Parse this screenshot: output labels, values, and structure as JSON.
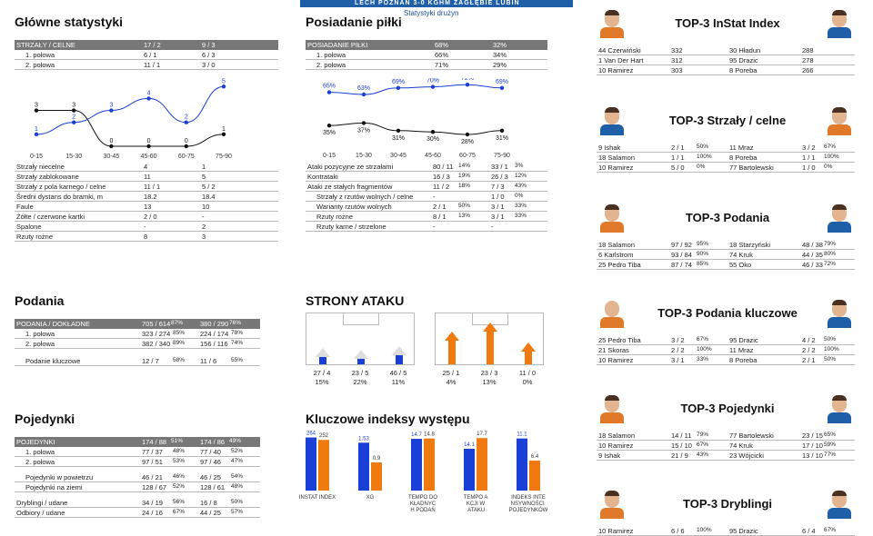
{
  "header": {
    "title": "LECH POZNAŃ 3-0 KGHM ZAGŁĘBIE LUBIN",
    "subtitle": "Statystyki drużyn"
  },
  "main_stats": {
    "title": "Główne statystyki",
    "head": [
      "STRZAŁY / CELNE",
      "17 / 2",
      "9 / 3"
    ],
    "half": [
      [
        "1. połowa",
        "6 / 1",
        "6 / 3"
      ],
      [
        "2. połowa",
        "11 / 1",
        "3 / 0"
      ]
    ],
    "chart_x": [
      "0-15",
      "15-30",
      "30-45",
      "45-60",
      "60-75",
      "75-90"
    ],
    "rows": [
      [
        "Strzały niecelne",
        "4",
        "1"
      ],
      [
        "Strzały zablokowane",
        "11",
        "5"
      ],
      [
        "Strzały z pola karnego / celne",
        "11 / 1",
        "5 / 2"
      ],
      [
        "Średni dystans do bramki, m",
        "18.2",
        "18.4"
      ],
      [
        "Faule",
        "13",
        "10"
      ],
      [
        "Żółte / czerwone kartki",
        "2 / 0",
        "-"
      ],
      [
        "Spalone",
        "-",
        "2"
      ],
      [
        "Rzuty rożne",
        "8",
        "3"
      ]
    ]
  },
  "possession": {
    "title": "Posiadanie piłki",
    "head": [
      "POSIADANIE PIŁKI",
      "68%",
      "32%"
    ],
    "half": [
      [
        "1. połowa",
        "66%",
        "34%"
      ],
      [
        "2. połowa",
        "71%",
        "29%"
      ]
    ],
    "rows": [
      [
        "Ataki pozycyjne ze strzałami",
        "80 / 11",
        "14%",
        "33 / 1",
        "3%"
      ],
      [
        "Kontrataki",
        "16 / 3",
        "19%",
        "26 / 3",
        "12%"
      ],
      [
        "Ataki ze stałych fragmentów",
        "11 / 2",
        "18%",
        "7 / 3",
        "43%"
      ],
      [
        "Strzały z rzutów wolnych / celne",
        "-",
        "",
        "1 / 0",
        "0%"
      ],
      [
        "Warianty rzutów wolnych",
        "2 / 1",
        "50%",
        "3 / 1",
        "33%"
      ],
      [
        "Rzuty rożne",
        "8 / 1",
        "13%",
        "3 / 1",
        "33%"
      ],
      [
        "Rzuty karne / strzelone",
        "-",
        "",
        "-",
        ""
      ]
    ]
  },
  "passes": {
    "title": "Podania",
    "head": [
      "PODANIA / DOKŁADNE",
      "705 / 614",
      "87%",
      "380 / 290",
      "76%"
    ],
    "rows": [
      [
        "1. połowa",
        "323 / 274",
        "85%",
        "224 / 174",
        "78%"
      ],
      [
        "2. połowa",
        "382 / 340",
        "89%",
        "156 / 116",
        "74%"
      ],
      [
        "Podanie kluczowe",
        "12 / 7",
        "58%",
        "11 / 6",
        "55%"
      ]
    ]
  },
  "duels": {
    "title": "Pojedynki",
    "head": [
      "POJEDYNKI",
      "174 / 88",
      "51%",
      "174 / 86",
      "49%"
    ],
    "rows": [
      [
        "1. połowa",
        "77 / 37",
        "48%",
        "77 / 40",
        "52%"
      ],
      [
        "2. połowa",
        "97 / 51",
        "53%",
        "97 / 46",
        "47%"
      ],
      [
        "Pojedynki w powietrzu",
        "46 / 21",
        "46%",
        "46 / 25",
        "54%"
      ],
      [
        "Pojedynki na ziemi",
        "128 / 67",
        "52%",
        "128 / 61",
        "48%"
      ],
      [
        "Dryblingi / udane",
        "34 / 19",
        "56%",
        "16 / 8",
        "50%"
      ],
      [
        "Odbiory / udane",
        "24 / 16",
        "67%",
        "44 / 25",
        "57%"
      ]
    ]
  },
  "attack": {
    "title": "STRONY ATAKU",
    "home": [
      [
        "27 / 4",
        "15%"
      ],
      [
        "23 / 5",
        "22%"
      ],
      [
        "46 / 5",
        "11%"
      ]
    ],
    "away": [
      [
        "25 / 1",
        "4%"
      ],
      [
        "23 / 3",
        "13%"
      ],
      [
        "11 / 0",
        "0%"
      ]
    ]
  },
  "indexes": {
    "title": "Kluczowe indeksy występu",
    "labels": [
      "INSTAT INDEX",
      "XG",
      "TEMPO DOKŁADNYCH PODAŃ",
      "TEMPO AKCJI W ATAKU",
      "INDEKS INTENSYWNOŚCI POJEDYNKÓW"
    ],
    "home": [
      "264",
      "1.53",
      "14.7",
      "14.1",
      "11.1"
    ],
    "away": [
      "252",
      "0.9",
      "14.8",
      "17.7",
      "6.4"
    ]
  },
  "chart_data": [
    {
      "type": "line",
      "categories": [
        "0-15",
        "15-30",
        "30-45",
        "45-60",
        "60-75",
        "75-90"
      ],
      "series": [
        {
          "values": [
            3,
            3,
            0,
            0,
            0,
            1
          ]
        },
        {
          "values": [
            1,
            2,
            3,
            4,
            2,
            5
          ]
        }
      ]
    },
    {
      "type": "line",
      "categories": [
        "0-15",
        "15-30",
        "30-45",
        "45-60",
        "60-75",
        "75-90"
      ],
      "series": [
        {
          "values": [
            65,
            63,
            69,
            70,
            72,
            69
          ]
        },
        {
          "values": [
            35,
            37,
            31,
            30,
            28,
            31
          ]
        }
      ]
    },
    {
      "type": "bar",
      "categories": [
        "INSTAT INDEX",
        "XG",
        "TEMPO DOKŁADNYCH PODAŃ",
        "TEMPO AKCJI W ATAKU",
        "INDEKS INTENSYWNOŚCI POJEDYNKÓW"
      ],
      "series": [
        {
          "values": [
            264,
            1.53,
            14.7,
            14.1,
            11.1
          ]
        },
        {
          "values": [
            252,
            0.9,
            14.8,
            17.7,
            6.4
          ]
        }
      ]
    }
  ],
  "top": [
    {
      "title": "TOP-3 InStat Index",
      "left": [
        [
          "44 Czerwiński",
          "332"
        ],
        [
          "1  Van Der Hart",
          "312"
        ],
        [
          "10 Ramirez",
          "303"
        ]
      ],
      "right": [
        [
          "30 Hładun",
          "288"
        ],
        [
          "95 Drazic",
          "278"
        ],
        [
          "8  Poreba",
          "266"
        ]
      ]
    },
    {
      "title": "TOP-3 Strzały / celne",
      "left": [
        [
          "9  Ishak",
          "2 / 1",
          "50%"
        ],
        [
          "18 Salamon",
          "1 / 1",
          "100%"
        ],
        [
          "10 Ramirez",
          "5 / 0",
          "0%"
        ]
      ],
      "right": [
        [
          "11 Mraz",
          "3 / 2",
          "67%"
        ],
        [
          "8  Poreba",
          "1 / 1",
          "100%"
        ],
        [
          "77 Bartolewski",
          "1 / 0",
          "0%"
        ]
      ]
    },
    {
      "title": "TOP-3 Podania",
      "left": [
        [
          "18 Salamon",
          "97 / 92",
          "95%"
        ],
        [
          "6  Karlstrom",
          "93 / 84",
          "90%"
        ],
        [
          "25 Pedro Tiba",
          "87 / 74",
          "85%"
        ]
      ],
      "right": [
        [
          "18 Starzyński",
          "48 / 38",
          "79%"
        ],
        [
          "74 Kruk",
          "44 / 35",
          "80%"
        ],
        [
          "55 Oko",
          "46 / 33",
          "72%"
        ]
      ]
    },
    {
      "title": "TOP-3 Podania kluczowe",
      "left": [
        [
          "25 Pedro Tiba",
          "3 / 2",
          "67%"
        ],
        [
          "21 Skoras",
          "2 / 2",
          "100%"
        ],
        [
          "10 Ramirez",
          "3 / 1",
          "33%"
        ]
      ],
      "right": [
        [
          "95 Drazic",
          "4 / 2",
          "50%"
        ],
        [
          "11 Mraz",
          "2 / 2",
          "100%"
        ],
        [
          "8  Poreba",
          "2 / 1",
          "50%"
        ]
      ]
    },
    {
      "title": "TOP-3 Pojedynki",
      "left": [
        [
          "18 Salamon",
          "14 / 11",
          "79%"
        ],
        [
          "10 Ramirez",
          "15 / 10",
          "67%"
        ],
        [
          "9  Ishak",
          "21 / 9",
          "43%"
        ]
      ],
      "right": [
        [
          "77 Bartolewski",
          "23 / 15",
          "65%"
        ],
        [
          "74 Kruk",
          "17 / 10",
          "59%"
        ],
        [
          "23 Wójcicki",
          "13 / 10",
          "77%"
        ]
      ]
    },
    {
      "title": "TOP-3 Dryblingi",
      "left": [
        [
          "10 Ramirez",
          "6 / 6",
          "100%"
        ]
      ],
      "right": [
        [
          "95 Drazic",
          "6 / 4",
          "67%"
        ]
      ]
    }
  ],
  "colors": {
    "home": "#1a3fd6",
    "away": "#f07a10",
    "dark": "#111111"
  }
}
